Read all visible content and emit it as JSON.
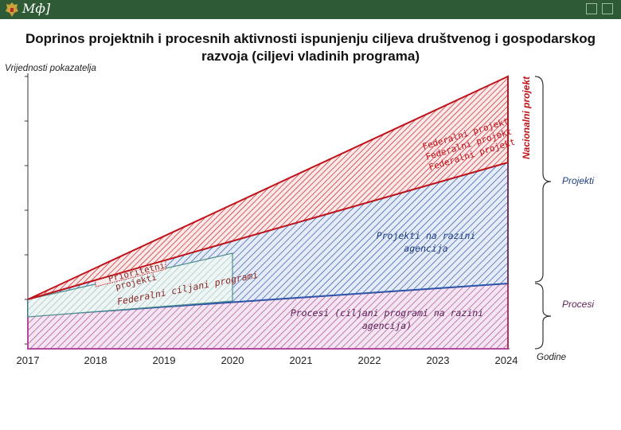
{
  "header": {
    "org_mark": "Мф]",
    "logo_icon": "coat-of-arms-icon",
    "bar_color": "#2e5b36"
  },
  "title": "Doprinos projektnih i procesnih aktivnosti ispunjenju ciljeva društvenog i gospodarskog razvoja (ciljevi vladinih programa)",
  "y_axis_label": "Vrijednosti pokazatelja",
  "x_axis_label": "Godine",
  "years": [
    "2017",
    "2018",
    "2019",
    "2020",
    "2021",
    "2022",
    "2023",
    "2024"
  ],
  "layers": {
    "procesi": {
      "label": "Procesi (ciljani programi na razini agencija)",
      "color": "#b44aa0"
    },
    "agencije": {
      "label": "Projekti na razini agencija",
      "color": "#2c56a8"
    },
    "federalni": {
      "label_1": "Federalni projekt",
      "label_2": "Federalni projekt",
      "label_3": "Federalni projekt",
      "color": "#c0141a"
    },
    "ciljani": {
      "label": "Federalni ciljani programi",
      "color": "#4e8f8c"
    },
    "prioritetni": {
      "label_1": "Prioritetni",
      "label_2": "projekti"
    },
    "nacionalni": {
      "label": "Nacionalni projekt"
    }
  },
  "braces": {
    "projekti": "Projekti",
    "procesi": "Procesi"
  }
}
